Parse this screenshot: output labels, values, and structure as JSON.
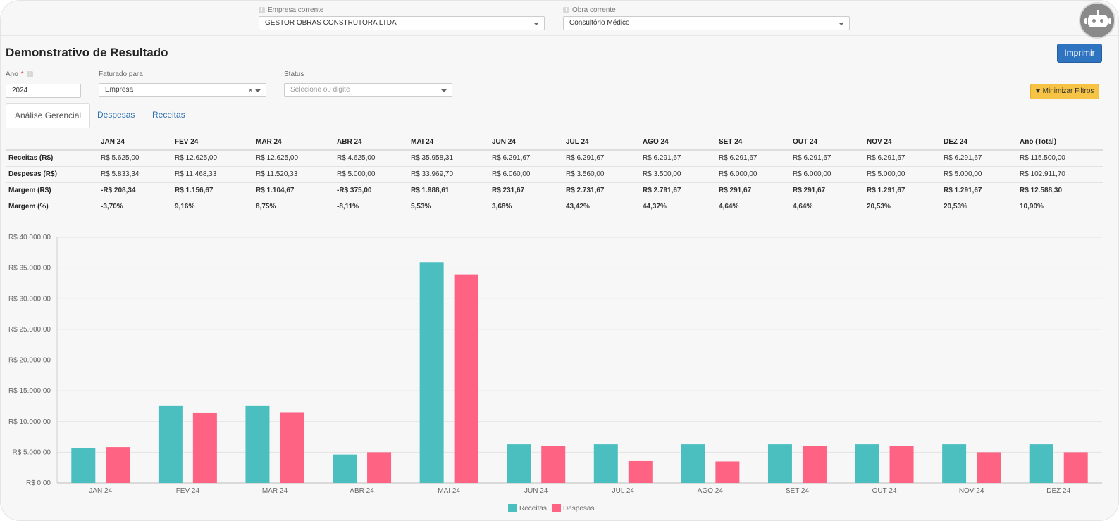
{
  "context": {
    "empresa_label": "Empresa corrente",
    "empresa_value": "GESTOR OBRAS CONSTRUTORA LTDA",
    "obra_label": "Obra corrente",
    "obra_value": "Consultório Médico"
  },
  "page": {
    "title": "Demonstrativo de Resultado",
    "print_label": "Imprimir"
  },
  "filters": {
    "ano_label": "Ano",
    "ano_required_mark": "*",
    "ano_value": "2024",
    "faturado_label": "Faturado para",
    "faturado_value": "Empresa",
    "status_label": "Status",
    "status_placeholder": "Selecione ou digite",
    "minimize_label": "Minimizar Filtros"
  },
  "tabs": [
    {
      "label": "Análise Gerencial",
      "active": true
    },
    {
      "label": "Despesas",
      "active": false
    },
    {
      "label": "Receitas",
      "active": false
    }
  ],
  "table": {
    "columns": [
      "JAN 24",
      "FEV 24",
      "MAR 24",
      "ABR 24",
      "MAI 24",
      "JUN 24",
      "JUL 24",
      "AGO 24",
      "SET 24",
      "OUT 24",
      "NOV 24",
      "DEZ 24",
      "Ano (Total)"
    ],
    "rows": [
      {
        "label": "Receitas (R$)",
        "style": "plain",
        "values": [
          "R$ 5.625,00",
          "R$ 12.625,00",
          "R$ 12.625,00",
          "R$ 4.625,00",
          "R$ 35.958,31",
          "R$ 6.291,67",
          "R$ 6.291,67",
          "R$ 6.291,67",
          "R$ 6.291,67",
          "R$ 6.291,67",
          "R$ 6.291,67",
          "R$ 6.291,67",
          "R$ 115.500,00"
        ]
      },
      {
        "label": "Despesas (R$)",
        "style": "plain",
        "values": [
          "R$ 5.833,34",
          "R$ 11.468,33",
          "R$ 11.520,33",
          "R$ 5.000,00",
          "R$ 33.969,70",
          "R$ 6.060,00",
          "R$ 3.560,00",
          "R$ 3.500,00",
          "R$ 6.000,00",
          "R$ 6.000,00",
          "R$ 5.000,00",
          "R$ 5.000,00",
          "R$ 102.911,70"
        ]
      },
      {
        "label": "Margem (R$)",
        "style": "signed",
        "values": [
          "-R$ 208,34",
          "R$ 1.156,67",
          "R$ 1.104,67",
          "-R$ 375,00",
          "R$ 1.988,61",
          "R$ 231,67",
          "R$ 2.731,67",
          "R$ 2.791,67",
          "R$ 291,67",
          "R$ 291,67",
          "R$ 1.291,67",
          "R$ 1.291,67",
          "R$ 12.588,30"
        ]
      },
      {
        "label": "Margem (%)",
        "style": "signed",
        "values": [
          "-3,70%",
          "9,16%",
          "8,75%",
          "-8,11%",
          "5,53%",
          "3,68%",
          "43,42%",
          "44,37%",
          "4,64%",
          "4,64%",
          "20,53%",
          "20,53%",
          "10,90%"
        ]
      }
    ]
  },
  "colors": {
    "receitas": "#4bbfbf",
    "despesas": "#fe6384",
    "positive": "#28a745",
    "negative": "#e0353f"
  },
  "chart_data": {
    "type": "bar",
    "categories": [
      "JAN 24",
      "FEV 24",
      "MAR 24",
      "ABR 24",
      "MAI 24",
      "JUN 24",
      "JUL 24",
      "AGO 24",
      "SET 24",
      "OUT 24",
      "NOV 24",
      "DEZ 24"
    ],
    "series": [
      {
        "name": "Receitas",
        "values": [
          5625.0,
          12625.0,
          12625.0,
          4625.0,
          35958.31,
          6291.67,
          6291.67,
          6291.67,
          6291.67,
          6291.67,
          6291.67,
          6291.67
        ]
      },
      {
        "name": "Despesas",
        "values": [
          5833.34,
          11468.33,
          11520.33,
          5000.0,
          33969.7,
          6060.0,
          3560.0,
          3500.0,
          6000.0,
          6000.0,
          5000.0,
          5000.0
        ]
      }
    ],
    "ylim": [
      0,
      40000
    ],
    "yticks": [
      0,
      5000,
      10000,
      15000,
      20000,
      25000,
      30000,
      35000,
      40000
    ],
    "ytick_labels": [
      "R$ 0,00",
      "R$ 5.000,00",
      "R$ 10.000,00",
      "R$ 15.000,00",
      "R$ 20.000,00",
      "R$ 25.000,00",
      "R$ 30.000,00",
      "R$ 35.000,00",
      "R$ 40.000,00"
    ],
    "grid": true,
    "legend": "bottom-center"
  }
}
